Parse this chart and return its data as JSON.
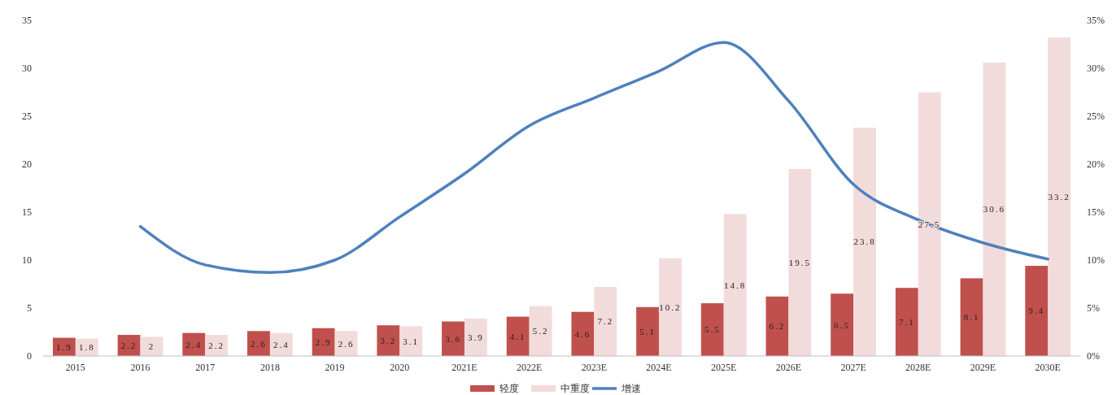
{
  "chart_data": {
    "type": "bar",
    "categories": [
      "2015",
      "2016",
      "2017",
      "2018",
      "2019",
      "2020",
      "2021E",
      "2022E",
      "2023E",
      "2024E",
      "2025E",
      "2026E",
      "2027E",
      "2028E",
      "2029E",
      "2030E"
    ],
    "series": [
      {
        "name": "轻度",
        "color": "#c0504d",
        "values": [
          1.9,
          2.2,
          2.4,
          2.6,
          2.9,
          3.2,
          3.6,
          4.1,
          4.6,
          5.1,
          5.5,
          6.2,
          6.5,
          7.1,
          8.1,
          9.4
        ],
        "value_labels": [
          "1.9",
          "2.2",
          "2.4",
          "2.6",
          "2.9",
          "3.2",
          "3.6",
          "4.1",
          "4.6",
          "5.1",
          "5.5",
          "6.2",
          "6.5",
          "7.1",
          "8.1",
          "9.4"
        ]
      },
      {
        "name": "中重度",
        "color": "#f2dcdb",
        "values": [
          1.8,
          2,
          2.2,
          2.4,
          2.6,
          3.1,
          3.9,
          5.2,
          7.2,
          10.2,
          14.8,
          19.5,
          23.8,
          27.5,
          30.6,
          33.2
        ],
        "value_labels": [
          "1.8",
          "2",
          "2.2",
          "2.4",
          "2.6",
          "3.1",
          "3.9",
          "5.2",
          "7.2",
          "10.2",
          "14.8",
          "19.5",
          "23.8",
          "27.5",
          "30.6",
          "33.2"
        ]
      },
      {
        "name": "增速",
        "type": "line",
        "axis": "y2",
        "color": "#4f81bd",
        "values": [
          null,
          13.5,
          9.5,
          8.7,
          10,
          14.5,
          19,
          24,
          26.9,
          29.7,
          32.7,
          26.6,
          17.9,
          14.2,
          11.8,
          10.1
        ]
      }
    ],
    "ylim": [
      0,
      35
    ],
    "yticks": [
      0,
      5,
      10,
      15,
      20,
      25,
      30,
      35
    ],
    "y2lim": [
      0,
      35
    ],
    "y2ticks": [
      {
        "value": 0,
        "label": "0%"
      },
      {
        "value": 5,
        "label": "5%"
      },
      {
        "value": 10,
        "label": "10%"
      },
      {
        "value": 15,
        "label": "15%"
      },
      {
        "value": 20,
        "label": "20%"
      },
      {
        "value": 25,
        "label": "25%"
      },
      {
        "value": 30,
        "label": "30%"
      },
      {
        "value": 35,
        "label": "35%"
      }
    ],
    "legend": "bottom",
    "grid": false
  }
}
